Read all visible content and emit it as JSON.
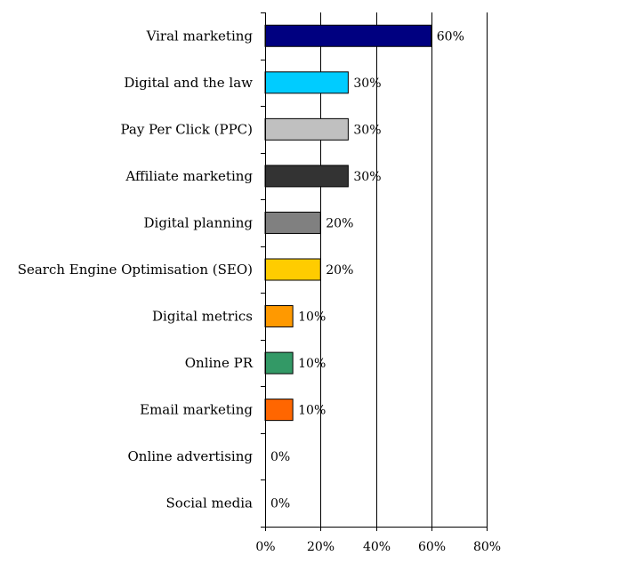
{
  "chart_data": {
    "type": "bar",
    "orientation": "horizontal",
    "categories": [
      "Viral marketing",
      "Digital and the law",
      "Pay Per Click (PPC)",
      "Affiliate marketing",
      "Digital planning",
      "Search Engine Optimisation (SEO)",
      "Digital metrics",
      "Online PR",
      "Email marketing",
      "Online advertising",
      "Social media"
    ],
    "values": [
      60,
      30,
      30,
      30,
      20,
      20,
      10,
      10,
      10,
      0,
      0
    ],
    "value_labels": [
      "60%",
      "30%",
      "30%",
      "30%",
      "20%",
      "20%",
      "10%",
      "10%",
      "10%",
      "0%",
      "0%"
    ],
    "colors": [
      "#000080",
      "#00CCFF",
      "#C0C0C0",
      "#333333",
      "#808080",
      "#FFCC00",
      "#FF9900",
      "#339966",
      "#FF6600",
      "#FFFFFF",
      "#FFFFFF"
    ],
    "xlim": [
      0,
      80
    ],
    "xticks": [
      0,
      20,
      40,
      60,
      80
    ],
    "xtick_labels": [
      "0%",
      "20%",
      "40%",
      "60%",
      "80%"
    ],
    "grid": true,
    "legend": "none",
    "title": "",
    "xlabel": "",
    "ylabel": ""
  }
}
